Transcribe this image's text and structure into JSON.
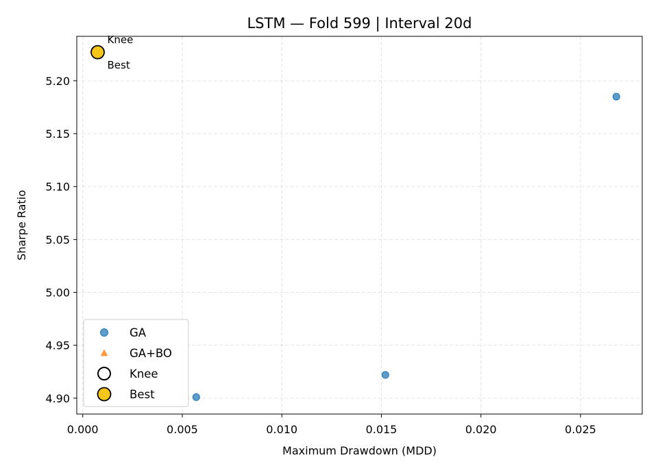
{
  "chart_data": {
    "type": "scatter",
    "title": "LSTM — Fold 599 | Interval 20d",
    "xlabel": "Maximum Drawdown (MDD)",
    "ylabel": "Sharpe Ratio",
    "xlim": [
      -0.0003,
      0.0281
    ],
    "ylim": [
      4.885,
      5.242
    ],
    "xticks": [
      0.0,
      0.005,
      0.01,
      0.015,
      0.02,
      0.025
    ],
    "xtick_labels": [
      "0.000",
      "0.005",
      "0.010",
      "0.015",
      "0.020",
      "0.025"
    ],
    "yticks": [
      4.9,
      4.95,
      5.0,
      5.05,
      5.1,
      5.15,
      5.2
    ],
    "ytick_labels": [
      "4.90",
      "4.95",
      "5.00",
      "5.05",
      "5.10",
      "5.15",
      "5.20"
    ],
    "grid": true,
    "legend_position": "lower-left",
    "series": [
      {
        "name": "GA",
        "marker": "circle",
        "color": "#1f77b4",
        "points": [
          {
            "x": 0.00075,
            "y": 5.227
          },
          {
            "x": 0.0057,
            "y": 4.901
          },
          {
            "x": 0.0152,
            "y": 4.922
          },
          {
            "x": 0.0268,
            "y": 5.185
          }
        ]
      },
      {
        "name": "GA+BO",
        "marker": "triangle",
        "color": "#ff7f0e",
        "points": []
      },
      {
        "name": "Knee",
        "marker": "hollow-circle",
        "color": "#000000",
        "points": [
          {
            "x": 0.00075,
            "y": 5.227
          }
        ]
      },
      {
        "name": "Best",
        "marker": "filled-circle",
        "color": "#f5c518",
        "points": [
          {
            "x": 0.00075,
            "y": 5.227
          }
        ]
      }
    ],
    "annotations": [
      {
        "text": "Knee",
        "x": 0.00075,
        "y": 5.227,
        "position": "above-right"
      },
      {
        "text": "Best",
        "x": 0.00075,
        "y": 5.227,
        "position": "below-right"
      }
    ]
  }
}
